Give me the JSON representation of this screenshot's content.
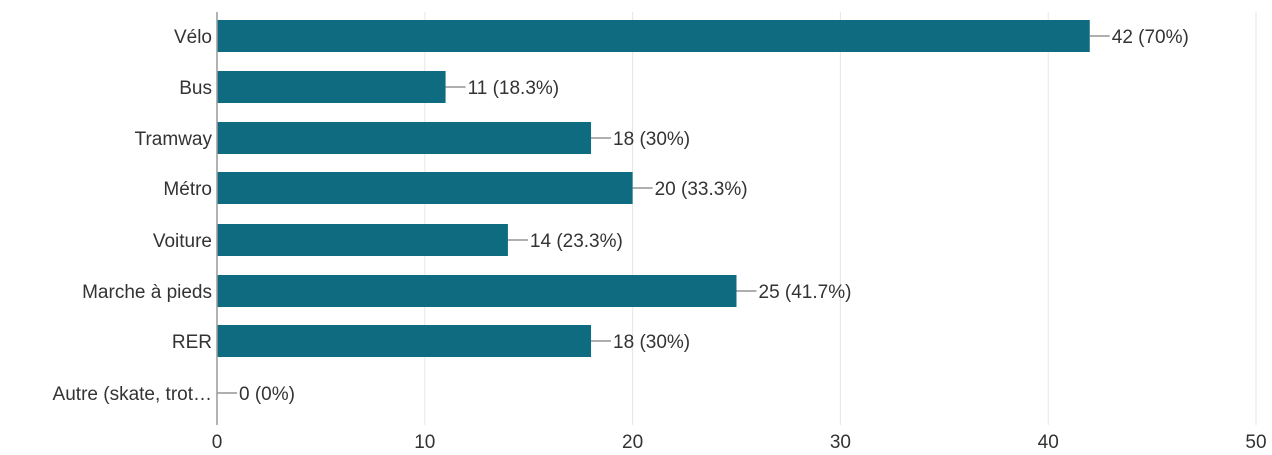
{
  "colors": {
    "bar": "#0f6b80",
    "grid": "#e6e6e6",
    "axis": "#9a9a9a",
    "text": "#333333"
  },
  "chart_data": {
    "type": "bar",
    "orientation": "horizontal",
    "categories": [
      "Vélo",
      "Bus",
      "Tramway",
      "Métro",
      "Voiture",
      "Marche à pieds",
      "RER",
      "Autre (skate, trot…"
    ],
    "values": [
      42,
      11,
      18,
      20,
      14,
      25,
      18,
      0
    ],
    "data_labels": [
      "42 (70%)",
      "11 (18.3%)",
      "18 (30%)",
      "20 (33.3%)",
      "14 (23.3%)",
      "25 (41.7%)",
      "18 (30%)",
      "0 (0%)"
    ],
    "xlim": [
      0,
      50
    ],
    "xticks": [
      0,
      10,
      20,
      30,
      40,
      50
    ],
    "grid": true,
    "legend": "none"
  }
}
